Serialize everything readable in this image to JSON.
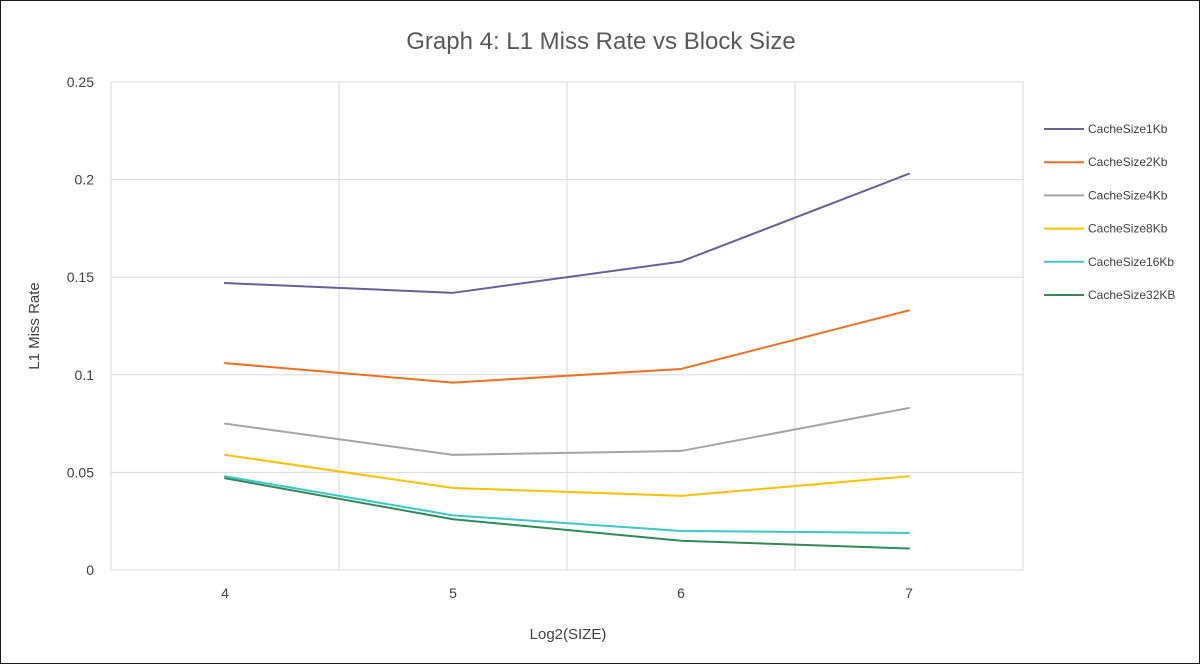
{
  "chart_data": {
    "type": "line",
    "title": "Graph 4: L1 Miss Rate vs Block Size",
    "xlabel": "Log2(SIZE)",
    "ylabel": "L1 Miss Rate",
    "categories": [
      "4",
      "5",
      "6",
      "7"
    ],
    "ylim": [
      0,
      0.25
    ],
    "yticks": [
      "0",
      "0.05",
      "0.1",
      "0.15",
      "0.2",
      "0.25"
    ],
    "grid": true,
    "legend_position": "right",
    "series": [
      {
        "name": "CacheSize1Kb",
        "color": "#6a5f99",
        "values": [
          0.147,
          0.142,
          0.158,
          0.203
        ]
      },
      {
        "name": "CacheSize2Kb",
        "color": "#f07020",
        "values": [
          0.106,
          0.096,
          0.103,
          0.133
        ]
      },
      {
        "name": "CacheSize4Kb",
        "color": "#a5a5a5",
        "values": [
          0.075,
          0.059,
          0.061,
          0.083
        ]
      },
      {
        "name": "CacheSize8Kb",
        "color": "#ffc000",
        "values": [
          0.059,
          0.042,
          0.038,
          0.048
        ]
      },
      {
        "name": "CacheSize16Kb",
        "color": "#3cc8c8",
        "values": [
          0.048,
          0.028,
          0.02,
          0.019
        ]
      },
      {
        "name": "CacheSize32KB",
        "color": "#2e8b57",
        "values": [
          0.047,
          0.026,
          0.015,
          0.011
        ]
      }
    ]
  }
}
